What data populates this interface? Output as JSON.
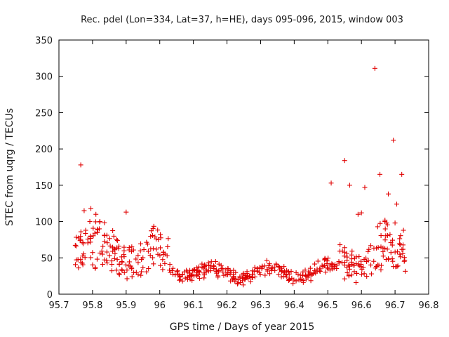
{
  "chart_data": {
    "type": "scatter",
    "title": "Rec. pdel (Lon=334, Lat=37, h=HE), days 095-096, 2015, window 003",
    "xlabel": "GPS time / Days of year 2015",
    "ylabel": "STEC from uqrg / TECUs",
    "xlim": [
      95.7,
      96.8
    ],
    "ylim": [
      0,
      350
    ],
    "xticks": [
      "95.7",
      "95.8",
      "95.9",
      "96",
      "96.1",
      "96.2",
      "96.3",
      "96.4",
      "96.5",
      "96.6",
      "96.7",
      "96.8"
    ],
    "yticks": [
      "0",
      "50",
      "100",
      "150",
      "200",
      "250",
      "300",
      "350"
    ],
    "grid": false,
    "marker": "+",
    "color": "#e00000",
    "series": [
      {
        "name": "STEC",
        "x": [
          95.765,
          95.775,
          95.795,
          95.81,
          95.82,
          95.9,
          95.99,
          96.51,
          96.55,
          96.565,
          96.59,
          96.6,
          96.61,
          96.64,
          96.655,
          96.67,
          96.675,
          96.68,
          96.685,
          96.695,
          96.7,
          96.705,
          96.72,
          96.725
        ],
        "y": [
          178,
          115,
          118,
          110,
          90,
          113,
          62,
          153,
          184,
          150,
          110,
          112,
          147,
          311,
          165,
          102,
          98,
          138,
          82,
          212,
          98,
          124,
          165,
          88
        ]
      }
    ]
  }
}
